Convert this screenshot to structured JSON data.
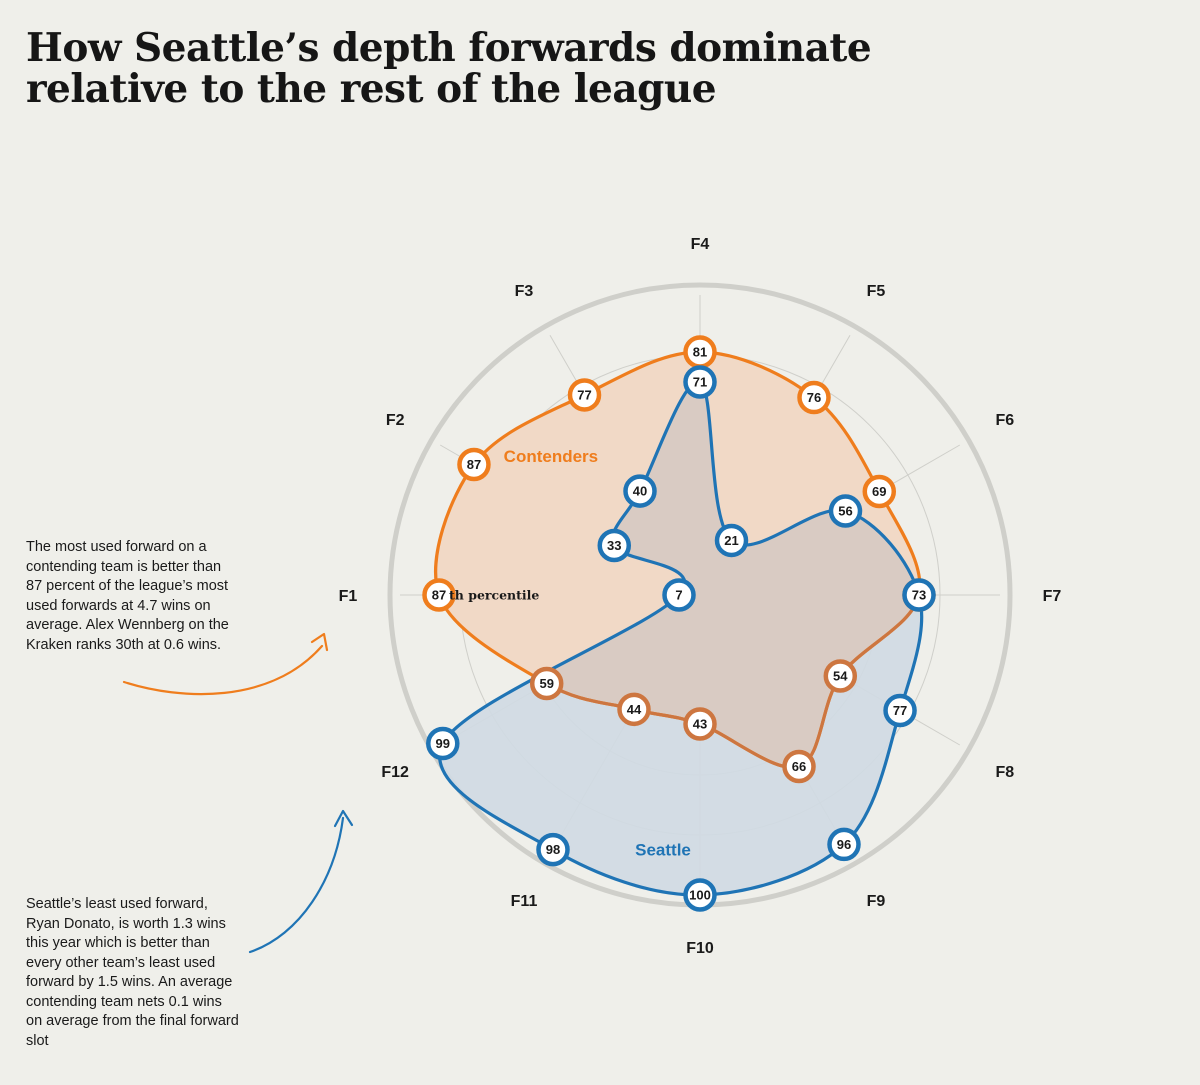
{
  "title": "How Seattle’s depth forwards dominate relative to the rest of the league",
  "notes": {
    "contenders": "The most used forward on a contending team is better than 87 percent of the league’s most used forwards at 4.7 wins on average. Alex Wennberg on the Kraken ranks 30th at 0.6 wins.",
    "seattle": "Seattle’s least used forward, Ryan Donato, is worth 1.3 wins this year which is better than every other team’s least used forward by 1.5 wins. An average contending team nets 0.1 wins on average from the final forward slot"
  },
  "colors": {
    "background": "#efefea",
    "contenders": "#ef7d1d",
    "contenders_fill": "#f1d9c6",
    "contenders_lower": "#cd7640",
    "seattle": "#1f74b5",
    "seattle_fill": "#d0dae3",
    "overlap_fill": "#d9cbc3",
    "grid": "#cfcfca",
    "outer_ring": "#cfcfca"
  },
  "chart_data": {
    "type": "radar",
    "axes": [
      "F1",
      "F2",
      "F3",
      "F4",
      "F5",
      "F6",
      "F7",
      "F8",
      "F9",
      "F10",
      "F11",
      "F12"
    ],
    "range": [
      0,
      100
    ],
    "gridlines": [
      20,
      40,
      60,
      80
    ],
    "series": [
      {
        "name": "Contenders",
        "values": [
          87,
          87,
          77,
          81,
          76,
          69,
          73,
          54,
          66,
          43,
          44,
          59
        ]
      },
      {
        "name": "Seattle",
        "values": [
          7,
          33,
          40,
          71,
          21,
          56,
          73,
          77,
          96,
          100,
          98,
          99
        ]
      }
    ],
    "annotations": [
      {
        "text": "th percentile",
        "axis": "F1",
        "series": "Contenders"
      }
    ]
  }
}
